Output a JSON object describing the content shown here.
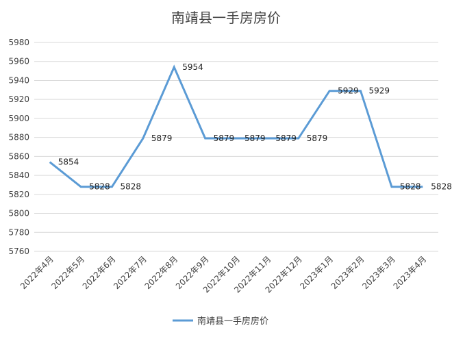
{
  "chart_data": {
    "type": "line",
    "title": "南靖县一手房房价",
    "xlabel": "",
    "ylabel": "",
    "categories": [
      "2022年4月",
      "2022年5月",
      "2022年6月",
      "2022年7月",
      "2022年8月",
      "2022年9月",
      "2022年10月",
      "2022年11月",
      "2022年12月",
      "2023年1月",
      "2023年2月",
      "2023年3月",
      "2023年4月"
    ],
    "series": [
      {
        "name": "南靖县一手房房价",
        "values": [
          5854,
          5828,
          5828,
          5879,
          5954,
          5879,
          5879,
          5879,
          5879,
          5929,
          5929,
          5828,
          5828
        ]
      }
    ],
    "ylim": [
      5760,
      5980
    ],
    "yticks": [
      5760,
      5780,
      5800,
      5820,
      5840,
      5860,
      5880,
      5900,
      5920,
      5940,
      5960,
      5980
    ],
    "data_labels": [
      "5854",
      "5828",
      "5828",
      "5879",
      "5954",
      "5879",
      "5879",
      "5879",
      "5879",
      "5929",
      "5929",
      "5828",
      "5828"
    ],
    "grid": true,
    "legend": "bottom",
    "colors": {
      "line": "#5b9bd5",
      "grid": "#d9d9d9"
    }
  }
}
